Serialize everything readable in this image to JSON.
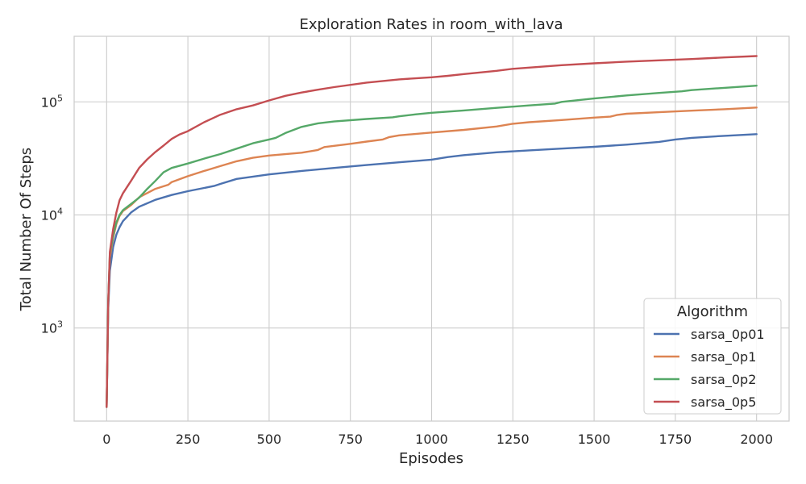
{
  "chart_data": {
    "type": "line",
    "title": "Exploration Rates in room_with_lava",
    "xlabel": "Episodes",
    "ylabel": "Total Number Of Steps",
    "xlim": [
      -100,
      2100
    ],
    "ylim": [
      150,
      380000
    ],
    "y_scale": "log",
    "grid": true,
    "x_ticks": [
      0,
      250,
      500,
      750,
      1000,
      1250,
      1500,
      1750,
      2000
    ],
    "x_tick_labels": [
      "0",
      "250",
      "500",
      "750",
      "1000",
      "1250",
      "1500",
      "1750",
      "2000"
    ],
    "y_ticks": [
      1000,
      10000,
      100000
    ],
    "y_tick_bases": [
      "10",
      "10",
      "10"
    ],
    "y_tick_exponents": [
      "3",
      "4",
      "5"
    ],
    "legend": {
      "title": "Algorithm",
      "placement": "lower-right"
    },
    "series": [
      {
        "name": "sarsa_0p01",
        "color": "#4c72b0",
        "x": [
          0,
          5,
          10,
          20,
          30,
          40,
          50,
          75,
          100,
          150,
          200,
          250,
          300,
          330,
          350,
          400,
          500,
          600,
          700,
          800,
          900,
          1000,
          1050,
          1100,
          1200,
          1300,
          1400,
          1500,
          1600,
          1700,
          1750,
          1800,
          1900,
          2000
        ],
        "y": [
          200,
          1500,
          3200,
          5200,
          6700,
          7800,
          8800,
          10500,
          11800,
          13600,
          15000,
          16200,
          17300,
          18000,
          18800,
          20800,
          22800,
          24500,
          26000,
          27600,
          29200,
          30800,
          32500,
          33800,
          35800,
          37200,
          38600,
          40000,
          41800,
          44200,
          46500,
          48000,
          50000,
          51800
        ]
      },
      {
        "name": "sarsa_0p1",
        "color": "#dd8452",
        "x": [
          0,
          5,
          10,
          20,
          30,
          40,
          50,
          75,
          100,
          150,
          190,
          200,
          250,
          300,
          350,
          400,
          450,
          500,
          600,
          650,
          670,
          700,
          750,
          800,
          850,
          870,
          900,
          1000,
          1100,
          1200,
          1250,
          1300,
          1400,
          1500,
          1550,
          1570,
          1600,
          1700,
          1800,
          1900,
          2000
        ],
        "y": [
          200,
          1700,
          4200,
          6300,
          8300,
          9800,
          10800,
          12200,
          14300,
          17000,
          18500,
          19500,
          22000,
          24500,
          27000,
          29800,
          32000,
          33500,
          35500,
          37500,
          39800,
          40800,
          42500,
          44500,
          46500,
          48800,
          50500,
          53500,
          56500,
          60500,
          64000,
          66000,
          69000,
          72500,
          74000,
          76500,
          78500,
          81000,
          83500,
          86000,
          89000
        ]
      },
      {
        "name": "sarsa_0p2",
        "color": "#55a868",
        "x": [
          0,
          5,
          10,
          20,
          30,
          40,
          50,
          75,
          100,
          125,
          150,
          175,
          200,
          250,
          300,
          350,
          400,
          450,
          500,
          520,
          550,
          600,
          650,
          700,
          800,
          880,
          900,
          950,
          1000,
          1100,
          1200,
          1300,
          1380,
          1400,
          1500,
          1600,
          1700,
          1770,
          1800,
          1900,
          2000
        ],
        "y": [
          200,
          1700,
          4500,
          6600,
          8600,
          10000,
          11000,
          12500,
          14200,
          17000,
          20000,
          23800,
          26000,
          28500,
          31500,
          34500,
          38500,
          43000,
          46500,
          48000,
          53000,
          60000,
          64500,
          67000,
          70500,
          73000,
          74500,
          77500,
          80000,
          84000,
          88500,
          93000,
          96500,
          100000,
          107000,
          114000,
          120000,
          124000,
          127000,
          133000,
          139000
        ]
      },
      {
        "name": "sarsa_0p5",
        "color": "#c44e52",
        "x": [
          0,
          5,
          10,
          20,
          30,
          40,
          50,
          75,
          100,
          125,
          150,
          175,
          200,
          225,
          250,
          300,
          350,
          400,
          450,
          500,
          550,
          600,
          650,
          700,
          800,
          900,
          1000,
          1050,
          1100,
          1200,
          1250,
          1300,
          1350,
          1400,
          1500,
          1600,
          1700,
          1800,
          1900,
          2000
        ],
        "y": [
          200,
          1700,
          4700,
          7500,
          10500,
          13500,
          15500,
          20000,
          26000,
          31000,
          36000,
          41000,
          47000,
          51500,
          55000,
          66000,
          77000,
          86000,
          93000,
          103000,
          113000,
          121000,
          128000,
          135000,
          148000,
          158000,
          165000,
          170000,
          176000,
          188000,
          196000,
          201000,
          206000,
          211000,
          219000,
          227000,
          233000,
          239000,
          247000,
          254000
        ]
      }
    ]
  }
}
